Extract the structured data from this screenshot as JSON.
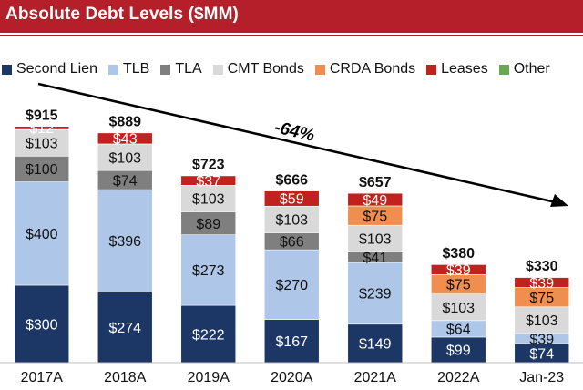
{
  "header": {
    "title": "Absolute Debt Levels ($MM)"
  },
  "legend": [
    {
      "name": "Second Lien",
      "color": "#1c3766"
    },
    {
      "name": "TLB",
      "color": "#aec6e8"
    },
    {
      "name": "TLA",
      "color": "#7f7f7f"
    },
    {
      "name": "CMT Bonds",
      "color": "#d9d9d9"
    },
    {
      "name": "CRDA Bonds",
      "color": "#ef8e4e"
    },
    {
      "name": "Leases",
      "color": "#c0231e"
    },
    {
      "name": "Other",
      "color": "#6aa84f"
    }
  ],
  "chart_data": {
    "type": "bar",
    "stacked": true,
    "title": "Absolute Debt Levels ($MM)",
    "categories": [
      "2017A",
      "2018A",
      "2019A",
      "2020A",
      "2021A",
      "2022A",
      "Jan-23"
    ],
    "series": [
      {
        "name": "Second Lien",
        "color": "#1c3766",
        "values": [
          300,
          274,
          222,
          167,
          149,
          99,
          74
        ],
        "labels": [
          "$300",
          "$274",
          "$222",
          "$167",
          "$149",
          "$99",
          "$74"
        ]
      },
      {
        "name": "TLB",
        "color": "#aec6e8",
        "values": [
          400,
          396,
          273,
          270,
          239,
          64,
          39
        ],
        "labels": [
          "$400",
          "$396",
          "$273",
          "$270",
          "$239",
          "$64",
          "$39"
        ]
      },
      {
        "name": "TLA",
        "color": "#7f7f7f",
        "values": [
          100,
          74,
          89,
          66,
          41,
          0,
          0
        ],
        "labels": [
          "$100",
          "$74",
          "$89",
          "$66",
          "$41",
          "",
          ""
        ]
      },
      {
        "name": "CMT Bonds",
        "color": "#d9d9d9",
        "values": [
          103,
          103,
          103,
          103,
          103,
          103,
          103
        ],
        "labels": [
          "$103",
          "$103",
          "$103",
          "$103",
          "$103",
          "$103",
          "$103"
        ]
      },
      {
        "name": "CRDA Bonds",
        "color": "#ef8e4e",
        "values": [
          0,
          0,
          0,
          0,
          75,
          75,
          75
        ],
        "labels": [
          "",
          "",
          "",
          "",
          "$75",
          "$75",
          "$75"
        ]
      },
      {
        "name": "Leases",
        "color": "#c0231e",
        "values": [
          12,
          43,
          37,
          59,
          49,
          39,
          39
        ],
        "labels": [
          "$12",
          "$43",
          "$37",
          "$59",
          "$49",
          "$39",
          "$39"
        ]
      },
      {
        "name": "Other",
        "color": "#6aa84f",
        "values": [
          1,
          1,
          1,
          1,
          1,
          1,
          1
        ],
        "labels": [
          "",
          "",
          "",
          "",
          "",
          "",
          ""
        ]
      }
    ],
    "totals": [
      "$915",
      "$889",
      "$723",
      "$666",
      "$657",
      "$380",
      "$330"
    ],
    "annotation": "-64%",
    "ylim": [
      0,
      1000
    ],
    "legend_position": "top",
    "grid": false
  }
}
